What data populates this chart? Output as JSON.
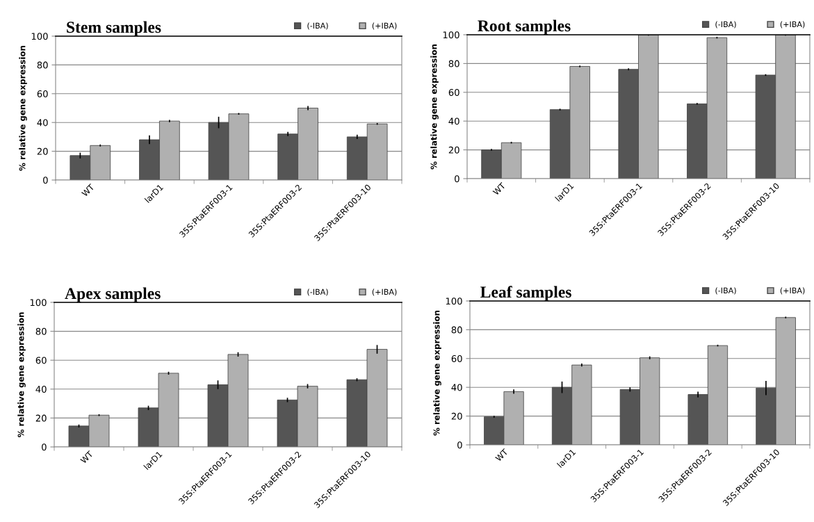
{
  "chart_data": [
    {
      "type": "bar",
      "title": "Stem samples",
      "ylabel": "% relative gene expression",
      "categories": [
        "WT",
        "larD1",
        "35S:PtaERF003-1",
        "35S:PtaERF003-2",
        "35S:PtaERF003-10"
      ],
      "ylim": [
        0,
        100
      ],
      "yticks": [
        0,
        20,
        40,
        60,
        80,
        100
      ],
      "grid": "y",
      "legend": "top right",
      "series": [
        {
          "name": "(-IBA)",
          "color": "#555555",
          "values": [
            17,
            28,
            40,
            32,
            30
          ],
          "errors": [
            2,
            3,
            4,
            1.5,
            1.5
          ]
        },
        {
          "name": "(+IBA)",
          "color": "#b0b0b0",
          "values": [
            24,
            41,
            46,
            50,
            39
          ],
          "errors": [
            0.7,
            0.8,
            0.6,
            1.5,
            0.6
          ]
        }
      ]
    },
    {
      "type": "bar",
      "title": "Root samples",
      "ylabel": "% relative gene expression",
      "categories": [
        "WT",
        "larD1",
        "35S:PtaERF003-1",
        "35S:PtaERF003-2",
        "35S:PtaERF003-10"
      ],
      "ylim": [
        0,
        100
      ],
      "yticks": [
        0,
        20,
        40,
        60,
        80,
        100
      ],
      "grid": "y",
      "legend": "top right",
      "series": [
        {
          "name": "(-IBA)",
          "color": "#555555",
          "values": [
            20,
            48,
            76,
            52,
            72
          ],
          "errors": [
            0.6,
            0.6,
            0.7,
            0.6,
            0.6
          ]
        },
        {
          "name": "(+IBA)",
          "color": "#b0b0b0",
          "values": [
            25,
            78,
            100,
            98,
            100
          ],
          "errors": [
            0.6,
            0.6,
            0.6,
            0.6,
            0.6
          ]
        }
      ]
    },
    {
      "type": "bar",
      "title": "Apex samples",
      "ylabel": "% relative gene expression",
      "categories": [
        "WT",
        "larD1",
        "35S:PtaERF003-1",
        "35S:PtaERF003-2",
        "35S:PtaERF003-10"
      ],
      "ylim": [
        0,
        100
      ],
      "yticks": [
        0,
        20,
        40,
        60,
        80,
        100
      ],
      "grid": "y",
      "legend": "top right",
      "series": [
        {
          "name": "(-IBA)",
          "color": "#555555",
          "values": [
            14.5,
            27,
            43,
            32.5,
            46.5
          ],
          "errors": [
            1,
            1.5,
            3,
            1.5,
            1
          ]
        },
        {
          "name": "(+IBA)",
          "color": "#b0b0b0",
          "values": [
            22,
            51,
            64,
            42,
            67.5
          ],
          "errors": [
            0.6,
            1,
            1.5,
            1.5,
            3
          ]
        }
      ]
    },
    {
      "type": "bar",
      "title": "Leaf samples",
      "ylabel": "% relative gene expression",
      "categories": [
        "WT",
        "larD1",
        "35S:PtaERF003-1",
        "35S:PtaERF003-2",
        "35S:PtaERF003-10"
      ],
      "ylim": [
        0,
        100
      ],
      "yticks": [
        0,
        20,
        40,
        60,
        80,
        100
      ],
      "grid": "y",
      "legend": "top right",
      "series": [
        {
          "name": "(-IBA)",
          "color": "#555555",
          "values": [
            19.5,
            40,
            38.5,
            35,
            39.5
          ],
          "errors": [
            0.7,
            4,
            1.5,
            2,
            5
          ]
        },
        {
          "name": "(+IBA)",
          "color": "#b0b0b0",
          "values": [
            37,
            55.5,
            60.5,
            69,
            88.5
          ],
          "errors": [
            1.5,
            1,
            1,
            0.6,
            0.6
          ]
        }
      ]
    }
  ]
}
